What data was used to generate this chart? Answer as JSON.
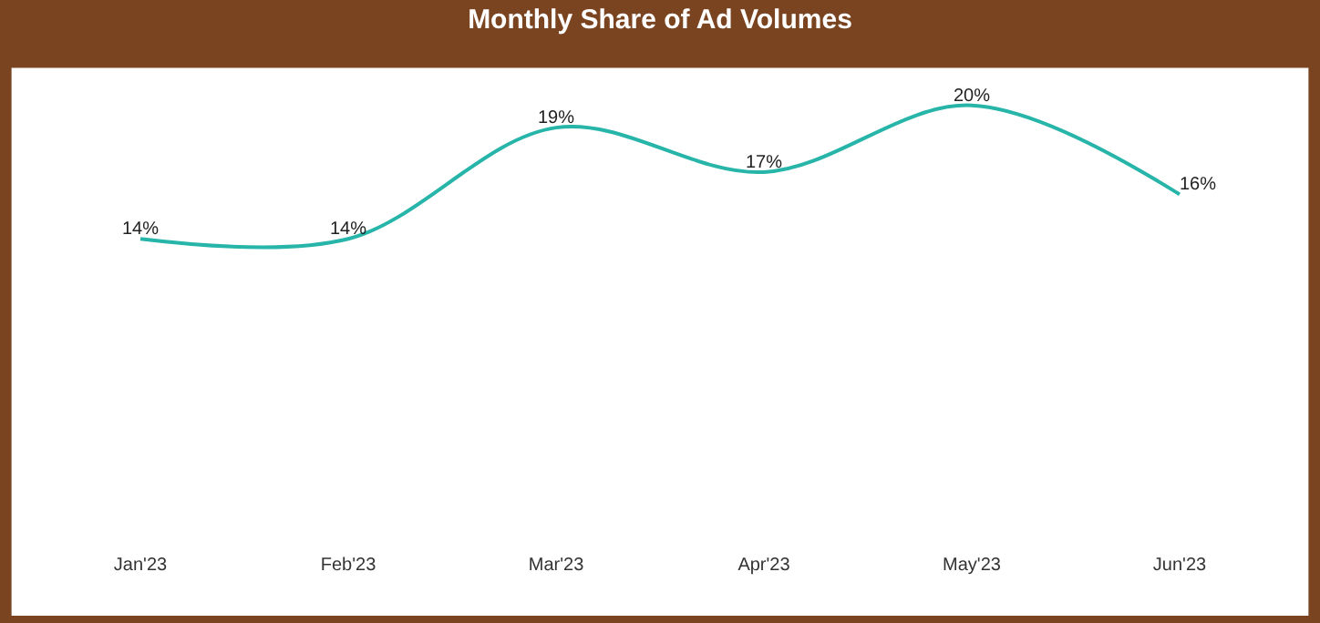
{
  "chart_data": {
    "type": "line",
    "title": "Monthly Share of Ad Volumes",
    "categories": [
      "Jan'23",
      "Feb'23",
      "Mar'23",
      "Apr'23",
      "May'23",
      "Jun'23"
    ],
    "series": [
      {
        "color": "#26b5a8",
        "values": [
          14,
          14,
          19,
          17,
          20,
          16
        ],
        "value_labels": [
          "14%",
          "14%",
          "19%",
          "17%",
          "20%",
          "16%"
        ]
      }
    ],
    "marker": "none",
    "line_style": "solid",
    "tick_labels": "x"
  }
}
